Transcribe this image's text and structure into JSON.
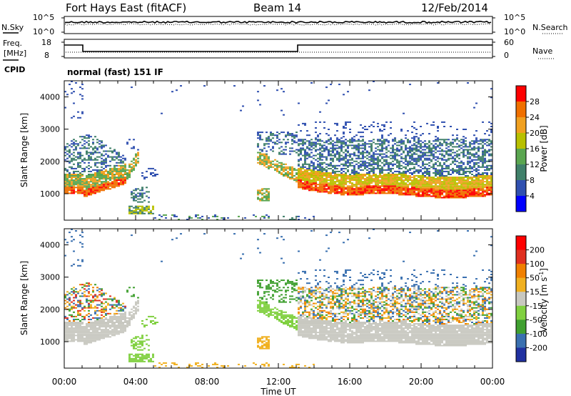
{
  "header": {
    "station": "Fort Hays East (fitACF)",
    "beam": "Beam 14",
    "date": "12/Feb/2014"
  },
  "noise_panel": {
    "left_label": "N.Sky",
    "left_ticks": [
      "10^5",
      "10^0"
    ],
    "right_ticks": [
      "10^5",
      "10^0"
    ],
    "right_label": "N.Search"
  },
  "freq_panel": {
    "left_label_1": "Freq.",
    "left_label_2": "[MHz]",
    "left_ticks": [
      "18",
      "8"
    ],
    "right_ticks": [
      "60",
      "0"
    ],
    "right_label": "Nave",
    "cpid_label": "CPID",
    "cpid_text": "normal (fast) 151 IF"
  },
  "chart_data": [
    {
      "type": "heatmap",
      "name": "power",
      "ylabel": "Slant Range [km]",
      "yticks": [
        "4000",
        "3000",
        "2000",
        "1000"
      ],
      "yrange_km": [
        180,
        4500
      ],
      "colorbar_label": "Power [dB]",
      "colorbar_ticks": [
        "28",
        "24",
        "20",
        "16",
        "12",
        "8",
        "4"
      ],
      "colorbar_range": [
        0,
        32
      ],
      "colors": [
        "#0000ff",
        "#3050b0",
        "#40806a",
        "#5aa650",
        "#b8c000",
        "#f0a020",
        "#f07000",
        "#ff0000"
      ]
    },
    {
      "type": "heatmap",
      "name": "velocity",
      "ylabel": "Slant Range [km]",
      "yticks": [
        "4000",
        "3000",
        "2000",
        "1000"
      ],
      "yrange_km": [
        180,
        4500
      ],
      "colorbar_label": "Velocity [m s",
      "colorbar_label_sup": "-1",
      "colorbar_label_end": "]",
      "colorbar_ticks": [
        "200",
        "100",
        "50",
        "15",
        "-15",
        "-50",
        "-100",
        "-200"
      ],
      "colors": [
        "#2030a0",
        "#3a70b0",
        "#40a030",
        "#80d040",
        "#c8c8c0",
        "#f0b020",
        "#f08000",
        "#e03020",
        "#ff0000"
      ]
    }
  ],
  "xaxis": {
    "ticks": [
      "00:00",
      "04:00",
      "08:00",
      "12:00",
      "16:00",
      "20:00",
      "00:00"
    ],
    "label": "Time UT"
  }
}
